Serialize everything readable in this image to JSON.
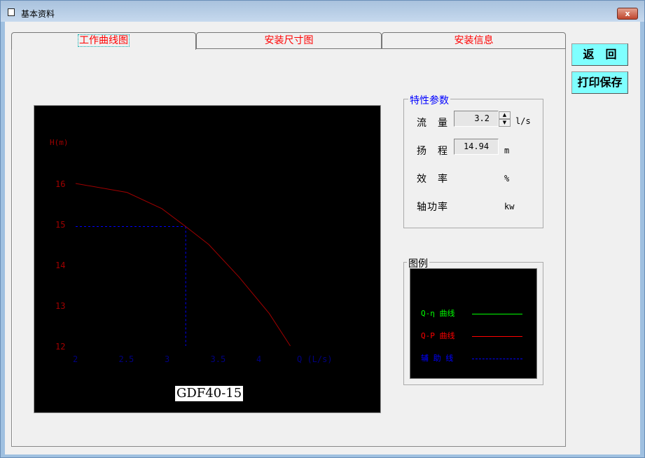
{
  "window": {
    "title": "基本资料",
    "close_label": "x"
  },
  "tabs": [
    {
      "label": "工作曲线图",
      "active": true
    },
    {
      "label": "安装尺寸图",
      "active": false
    },
    {
      "label": "安装信息",
      "active": false
    }
  ],
  "buttons": {
    "back": "返　回",
    "print_save": "打印保存"
  },
  "params": {
    "title": "特性参数",
    "flow": {
      "label": "流　量",
      "value": "3.2",
      "unit": "l/s"
    },
    "head": {
      "label": "扬　程",
      "value": "14.94",
      "unit": "m"
    },
    "efficiency": {
      "label": "效　率",
      "unit": "%"
    },
    "shaft_power": {
      "label": "轴功率",
      "unit": "kw"
    }
  },
  "legend": {
    "title": "图例",
    "items": [
      {
        "label": "Q-η 曲线",
        "color": "#00ff00",
        "style": "solid"
      },
      {
        "label": "Q-P 曲线",
        "color": "#ff0000",
        "style": "solid"
      },
      {
        "label": "辅 助 线",
        "color": "#0000ff",
        "style": "dashed"
      }
    ]
  },
  "chart_data": {
    "type": "line",
    "title": "GDF40-15",
    "ylabel": "H(m)",
    "xlabel": "Q (L/s)",
    "xlim": [
      2,
      4.5
    ],
    "ylim": [
      12,
      16
    ],
    "xticks": [
      "2",
      "2.5",
      "3",
      "3.5",
      "4"
    ],
    "yticks": [
      "16",
      "15",
      "14",
      "13",
      "12"
    ],
    "grid": false,
    "series": [
      {
        "color": "#a00000",
        "x": [
          2,
          2.56,
          2.94,
          3.2,
          3.45,
          3.78,
          4.11,
          4.34
        ],
        "y": [
          16,
          15.78,
          15.38,
          14.94,
          14.5,
          13.7,
          12.8,
          12.0
        ]
      }
    ],
    "operating_point": {
      "x": 3.2,
      "y": 14.94,
      "color": "#0000ff"
    }
  }
}
